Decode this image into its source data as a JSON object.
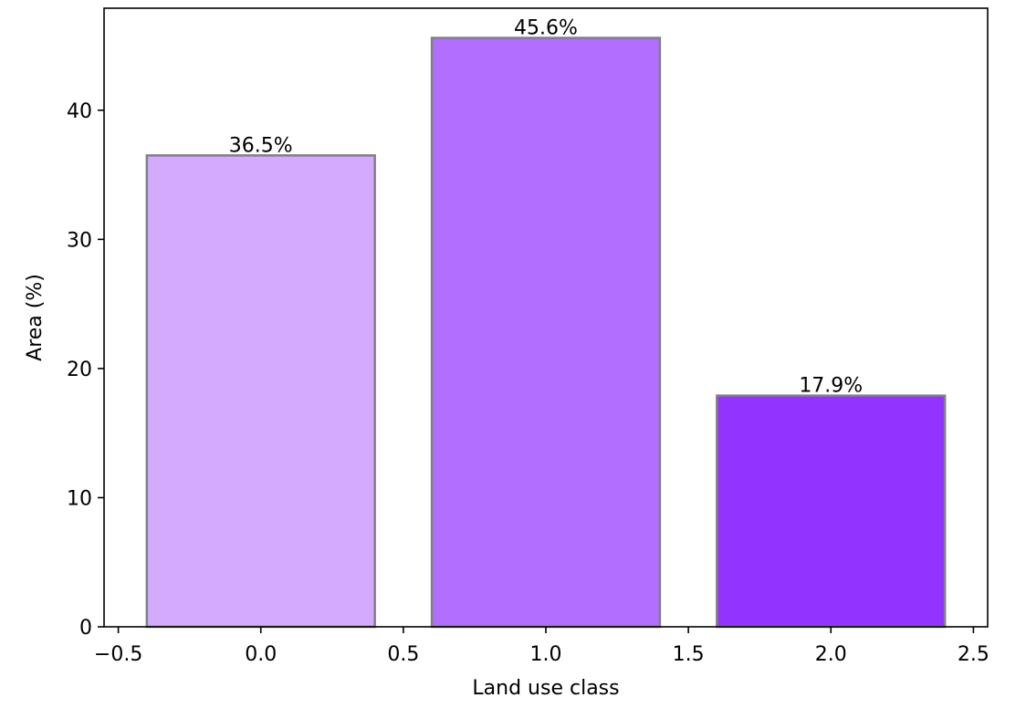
{
  "chart_data": {
    "type": "bar",
    "title": "",
    "xlabel": "Land use class",
    "ylabel": "Area (%)",
    "xlim": [
      -0.55,
      2.55
    ],
    "ylim": [
      0,
      47.9
    ],
    "x": [
      0.0,
      1.0,
      2.0
    ],
    "values": [
      36.5,
      45.6,
      17.9
    ],
    "bar_width": 0.8,
    "data_labels": [
      "36.5%",
      "45.6%",
      "17.9%"
    ],
    "bar_colors": [
      "#d4aaff",
      "#b26eff",
      "#9233ff"
    ],
    "bar_edge_color": "#808080",
    "x_ticks": [
      -0.5,
      0.0,
      0.5,
      1.0,
      1.5,
      2.0,
      2.5
    ],
    "x_tick_labels": [
      "−0.5",
      "0.0",
      "0.5",
      "1.0",
      "1.5",
      "2.0",
      "2.5"
    ],
    "y_ticks": [
      0,
      10,
      20,
      30,
      40
    ],
    "y_tick_labels": [
      "0",
      "10",
      "20",
      "30",
      "40"
    ],
    "grid": false,
    "legend": false
  }
}
